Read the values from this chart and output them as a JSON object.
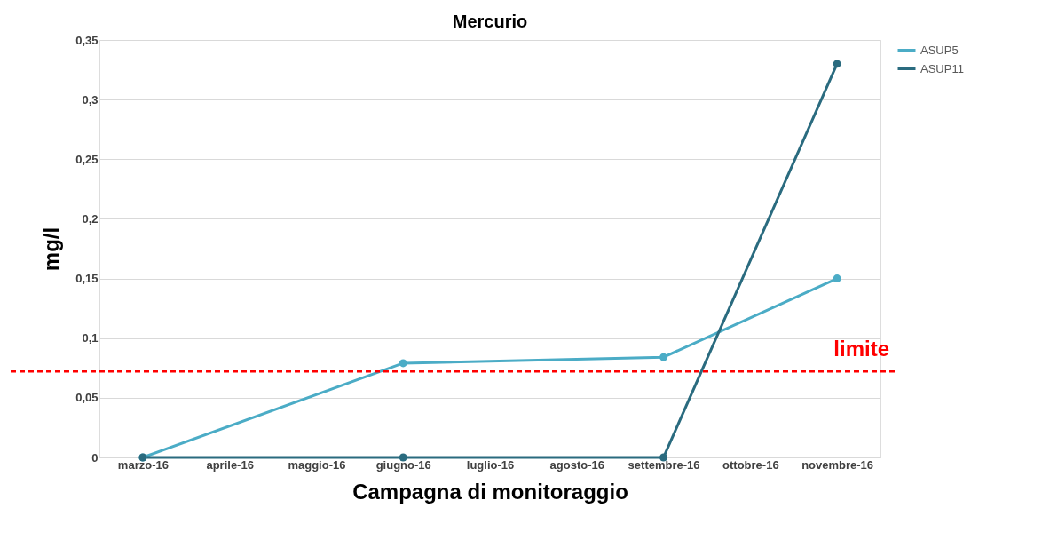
{
  "chart_data": {
    "type": "line",
    "title": "Mercurio",
    "xlabel": "Campagna di monitoraggio",
    "ylabel": "mg/l",
    "categories": [
      "marzo-16",
      "aprile-16",
      "maggio-16",
      "giugno-16",
      "luglio-16",
      "agosto-16",
      "settembre-16",
      "ottobre-16",
      "novembre-16"
    ],
    "series": [
      {
        "name": "ASUP5",
        "color": "#4bacc6",
        "x": [
          "marzo-16",
          "giugno-16",
          "settembre-16",
          "novembre-16"
        ],
        "values": [
          0,
          0.079,
          0.084,
          0.15
        ]
      },
      {
        "name": "ASUP11",
        "color": "#2a6b7f",
        "x": [
          "marzo-16",
          "giugno-16",
          "settembre-16",
          "novembre-16"
        ],
        "values": [
          0,
          0,
          0,
          0.33
        ]
      }
    ],
    "ylim": [
      0,
      0.35
    ],
    "yticks": [
      {
        "value": 0,
        "label": "0"
      },
      {
        "value": 0.05,
        "label": "0,05"
      },
      {
        "value": 0.1,
        "label": "0,1"
      },
      {
        "value": 0.15,
        "label": "0,15"
      },
      {
        "value": 0.2,
        "label": "0,2"
      },
      {
        "value": 0.25,
        "label": "0,25"
      },
      {
        "value": 0.3,
        "label": "0,3"
      },
      {
        "value": 0.35,
        "label": "0,35"
      }
    ],
    "ref_lines": [
      {
        "axis": "y",
        "value": 0.072,
        "label": "limite",
        "color": "#ff0000",
        "line_style": "dashed"
      }
    ],
    "grid": "y",
    "legend": "top right",
    "marker": "circle",
    "line_style": "solid"
  }
}
